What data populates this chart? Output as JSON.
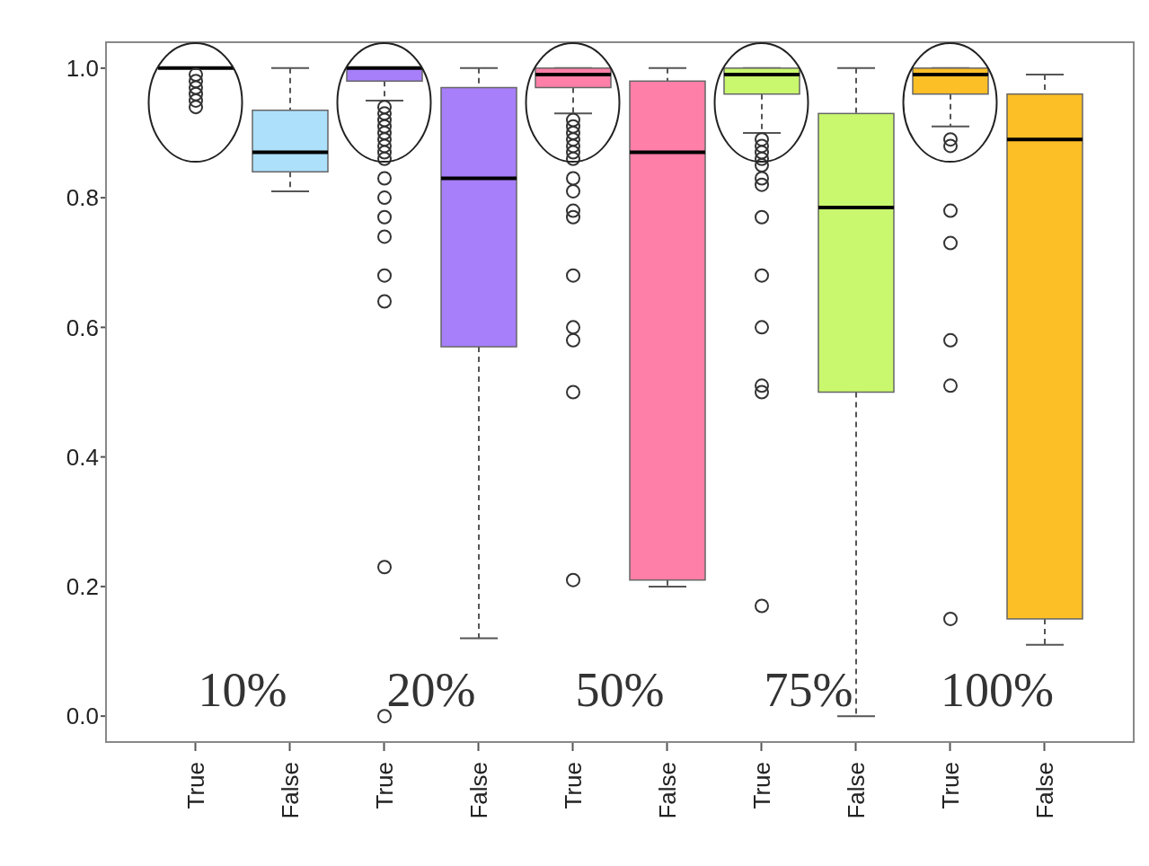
{
  "chart_data": {
    "type": "box",
    "categories": [
      "True",
      "False",
      "True",
      "False",
      "True",
      "False",
      "True",
      "False",
      "True",
      "False"
    ],
    "colors": [
      "#000000",
      "#ade0fb",
      "#a77ffa",
      "#a77ffa",
      "#fe7fa8",
      "#fe7fa8",
      "#c9f86e",
      "#c9f86e",
      "#fdbf26",
      "#fdbf26"
    ],
    "boxes": [
      {
        "low": 1.0,
        "q1": 1.0,
        "median": 1.0,
        "q3": 1.0,
        "high": 1.0,
        "outliers": [
          0.99,
          0.98,
          0.97,
          0.96,
          0.95,
          0.94
        ]
      },
      {
        "low": 0.81,
        "q1": 0.84,
        "median": 0.87,
        "q3": 0.935,
        "high": 1.0
      },
      {
        "low": 0.95,
        "q1": 0.98,
        "median": 1.0,
        "q3": 1.0,
        "high": 1.0,
        "outliers": [
          0.94,
          0.93,
          0.92,
          0.91,
          0.9,
          0.89,
          0.88,
          0.87,
          0.86,
          0.83,
          0.8,
          0.77,
          0.74,
          0.68,
          0.64,
          0.23,
          0.0
        ]
      },
      {
        "low": 0.12,
        "q1": 0.57,
        "median": 0.83,
        "q3": 0.97,
        "high": 1.0
      },
      {
        "low": 0.93,
        "q1": 0.97,
        "median": 0.99,
        "q3": 1.0,
        "high": 1.0,
        "outliers": [
          0.92,
          0.91,
          0.9,
          0.89,
          0.88,
          0.87,
          0.86,
          0.83,
          0.81,
          0.78,
          0.77,
          0.68,
          0.6,
          0.58,
          0.5,
          0.21
        ]
      },
      {
        "low": 0.2,
        "q1": 0.21,
        "median": 0.87,
        "q3": 0.98,
        "high": 1.0
      },
      {
        "low": 0.9,
        "q1": 0.96,
        "median": 0.99,
        "q3": 1.0,
        "high": 1.0,
        "outliers": [
          0.89,
          0.88,
          0.87,
          0.86,
          0.85,
          0.83,
          0.82,
          0.77,
          0.68,
          0.6,
          0.51,
          0.5,
          0.17
        ]
      },
      {
        "low": 0.0,
        "q1": 0.5,
        "median": 0.785,
        "q3": 0.93,
        "high": 1.0
      },
      {
        "low": 0.91,
        "q1": 0.96,
        "median": 0.99,
        "q3": 1.0,
        "high": 1.0,
        "outliers": [
          0.89,
          0.88,
          0.78,
          0.73,
          0.58,
          0.51,
          0.15
        ]
      },
      {
        "low": 0.11,
        "q1": 0.15,
        "median": 0.89,
        "q3": 0.96,
        "high": 0.99
      }
    ],
    "ylim": [
      -0.04,
      1.04
    ],
    "yticks": [
      {
        "value": 0,
        "label": "0.0"
      },
      0.2,
      0.4,
      0.6,
      0.8,
      {
        "value": 1,
        "label": "1.0"
      }
    ],
    "annotations": [
      "10%",
      "20%",
      "50%",
      "75%",
      "100%"
    ]
  }
}
